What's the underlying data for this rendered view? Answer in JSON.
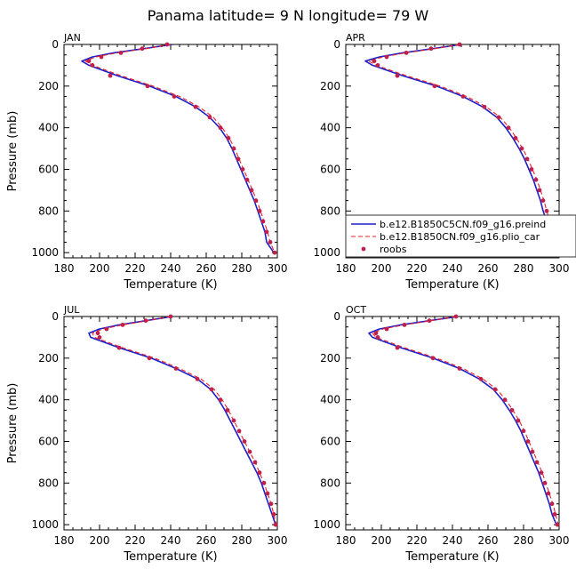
{
  "page_title": "Panama   latitude= 9 N longitude= 79 W",
  "legend": [
    {
      "label": "b.e12.B1850C5CN.f09_g16.preind",
      "style": "solid",
      "color": "#1f1fc8"
    },
    {
      "label": "b.e12.B1850CN.f09_g16.plio_car",
      "style": "dashed",
      "color": "#e8202a"
    },
    {
      "label": "roobs",
      "style": "dots",
      "color": "#c0204a"
    }
  ],
  "colors": {
    "solid": "#1f1fc8",
    "dashed": "#e8202a",
    "dots": "#c0204a"
  },
  "chart_data": [
    {
      "type": "line",
      "month": "JAN",
      "xlabel": "Temperature (K)",
      "ylabel": "Pressure (mb)",
      "xlim": [
        180,
        300
      ],
      "ylim": [
        0,
        1025
      ],
      "y_inverted": true,
      "xticks": [
        180,
        200,
        220,
        240,
        260,
        280,
        300
      ],
      "yticks": [
        0,
        200,
        400,
        600,
        800,
        1000
      ],
      "pressure": [
        0,
        20,
        40,
        60,
        80,
        100,
        150,
        200,
        250,
        300,
        350,
        400,
        450,
        500,
        550,
        600,
        650,
        700,
        750,
        800,
        850,
        900,
        950,
        1000
      ],
      "series": [
        {
          "name": "b.e12.B1850C5CN.f09_g16.preind",
          "style": "solid",
          "values": [
            241,
            225,
            208,
            196,
            190,
            194,
            210,
            228,
            243,
            254,
            262,
            267.5,
            271.5,
            274.5,
            277,
            279.5,
            282,
            284.5,
            287,
            289,
            291,
            293,
            294,
            298
          ]
        },
        {
          "name": "b.e12.B1850CN.f09_g16.plio_car",
          "style": "dashed",
          "values": [
            240,
            226,
            210,
            198,
            192,
            196,
            212,
            230,
            245,
            256,
            264,
            269,
            273,
            276,
            278.5,
            281,
            283.5,
            286,
            288.5,
            290.5,
            292.5,
            294.5,
            296,
            298.5
          ]
        },
        {
          "name": "roobs",
          "style": "dots",
          "values": [
            238,
            224,
            212,
            201,
            194,
            196,
            206,
            227,
            242,
            254,
            262,
            268,
            272.5,
            275.5,
            278,
            280.5,
            283,
            285.5,
            288,
            290,
            292,
            294,
            296,
            298.5
          ]
        }
      ]
    },
    {
      "type": "line",
      "month": "APR",
      "xlabel": "Temperature (K)",
      "ylabel": "",
      "xlim": [
        180,
        300
      ],
      "ylim": [
        0,
        1025
      ],
      "y_inverted": true,
      "xticks": [
        180,
        200,
        220,
        240,
        260,
        280,
        300
      ],
      "yticks": [
        0,
        200,
        400,
        600,
        800,
        1000
      ],
      "pressure": [
        0,
        20,
        40,
        60,
        80,
        100,
        150,
        200,
        250,
        300,
        350,
        400,
        450,
        500,
        550,
        600,
        650,
        700,
        750,
        800,
        850,
        900,
        950,
        1000
      ],
      "series": [
        {
          "name": "b.e12.B1850C5CN.f09_g16.preind",
          "style": "solid",
          "values": [
            245,
            229,
            212,
            199,
            191,
            195,
            212,
            231,
            246,
            257,
            265,
            270,
            274,
            277.5,
            280.5,
            283,
            285.5,
            287.5,
            289.5,
            291,
            293,
            295,
            297,
            300
          ]
        },
        {
          "name": "b.e12.B1850CN.f09_g16.plio_car",
          "style": "dashed",
          "values": [
            244,
            230,
            214,
            201,
            193,
            197,
            214,
            233,
            248,
            259,
            267,
            272,
            276,
            279.5,
            282.5,
            285,
            287.5,
            289.5,
            291.5,
            293,
            295,
            297,
            298.5,
            300.5
          ]
        },
        {
          "name": "roobs",
          "style": "dots",
          "values": [
            244,
            228,
            214,
            203,
            196,
            198,
            209,
            230,
            246,
            258,
            266,
            271.5,
            275.5,
            279,
            282,
            284.5,
            287,
            289,
            291,
            293,
            295,
            296.5,
            298,
            300
          ]
        }
      ]
    },
    {
      "type": "line",
      "month": "JUL",
      "xlabel": "Temperature (K)",
      "ylabel": "Pressure (mb)",
      "xlim": [
        180,
        300
      ],
      "ylim": [
        0,
        1025
      ],
      "y_inverted": true,
      "xticks": [
        180,
        200,
        220,
        240,
        260,
        280,
        300
      ],
      "yticks": [
        0,
        200,
        400,
        600,
        800,
        1000
      ],
      "pressure": [
        0,
        20,
        40,
        60,
        80,
        100,
        150,
        200,
        250,
        300,
        350,
        400,
        450,
        500,
        550,
        600,
        650,
        700,
        750,
        800,
        850,
        900,
        950,
        1000
      ],
      "series": [
        {
          "name": "b.e12.B1850C5CN.f09_g16.preind",
          "style": "solid",
          "values": [
            241,
            226,
            211,
            200,
            194,
            195,
            211,
            229,
            243,
            255,
            262.5,
            267,
            270.5,
            273.5,
            276.5,
            279.5,
            282.5,
            285.5,
            288.5,
            291,
            293,
            295,
            297,
            299
          ]
        },
        {
          "name": "b.e12.B1850CN.f09_g16.plio_car",
          "style": "dashed",
          "values": [
            240,
            227,
            213,
            202,
            196,
            197,
            213,
            231,
            245,
            257,
            264.5,
            269,
            272.5,
            275.5,
            278.5,
            281.5,
            284.5,
            287.5,
            290,
            292.5,
            294.5,
            296.5,
            298,
            299.5
          ]
        },
        {
          "name": "roobs",
          "style": "dots",
          "values": [
            240,
            226,
            213,
            204,
            199,
            200,
            211,
            228,
            243,
            255,
            263,
            268,
            272,
            275.5,
            278.5,
            281.5,
            284.5,
            287.5,
            290,
            292.5,
            294.5,
            296.5,
            298,
            299
          ]
        }
      ]
    },
    {
      "type": "line",
      "month": "OCT",
      "xlabel": "Temperature (K)",
      "ylabel": "",
      "xlim": [
        180,
        300
      ],
      "ylim": [
        0,
        1025
      ],
      "y_inverted": true,
      "xticks": [
        180,
        200,
        220,
        240,
        260,
        280,
        300
      ],
      "yticks": [
        0,
        200,
        400,
        600,
        800,
        1000
      ],
      "pressure": [
        0,
        20,
        40,
        60,
        80,
        100,
        150,
        200,
        250,
        300,
        350,
        400,
        450,
        500,
        550,
        600,
        650,
        700,
        750,
        800,
        850,
        900,
        950,
        1000
      ],
      "series": [
        {
          "name": "b.e12.B1850C5CN.f09_g16.preind",
          "style": "solid",
          "values": [
            243,
            227,
            211,
            199,
            193,
            195,
            211,
            229,
            244,
            255,
            263,
            268,
            272,
            275.5,
            278.5,
            281,
            283.5,
            286,
            288.5,
            290.5,
            292.5,
            294.5,
            296,
            298.5
          ]
        },
        {
          "name": "b.e12.B1850CN.f09_g16.plio_car",
          "style": "dashed",
          "values": [
            242,
            228,
            213,
            201,
            195,
            197,
            213,
            231,
            246,
            257,
            265,
            270,
            274,
            277.5,
            280.5,
            283,
            285.5,
            288,
            290.5,
            292.5,
            294.5,
            296.5,
            298,
            299.5
          ]
        },
        {
          "name": "roobs",
          "style": "dots",
          "values": [
            242,
            227,
            213,
            203,
            197,
            198,
            209,
            229,
            244,
            256,
            264,
            269.5,
            273.5,
            277,
            280,
            282.5,
            285,
            287.5,
            290,
            292,
            294,
            296,
            297.5,
            299
          ]
        }
      ]
    }
  ]
}
